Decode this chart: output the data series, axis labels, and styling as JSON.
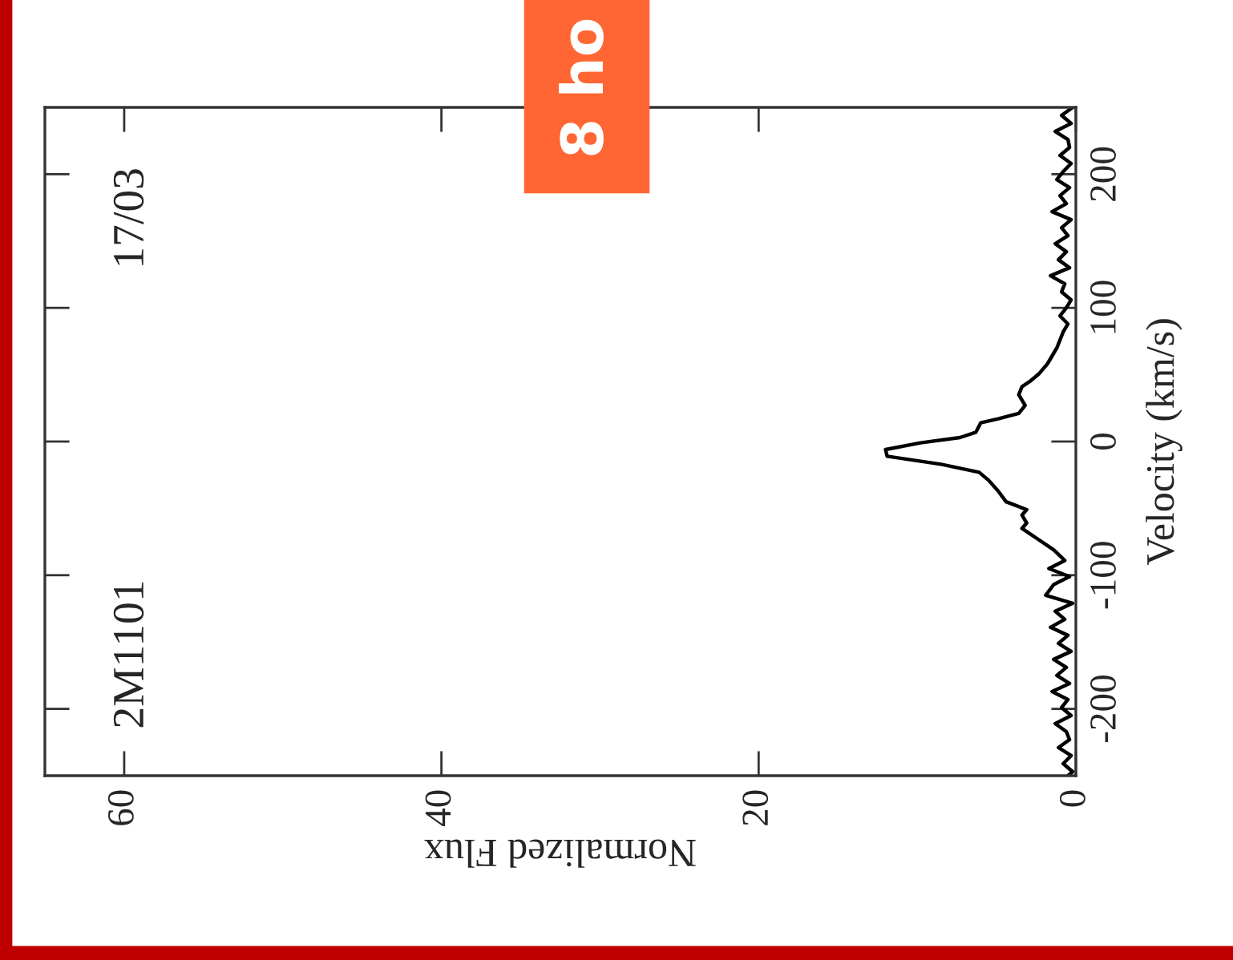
{
  "chart_data": {
    "type": "line",
    "orientation": "horizontal",
    "xlabel": "Normalized Flux",
    "ylabel": "Velocity (km/s)",
    "annotations": [
      "2M1101",
      "17/03",
      "8 ho"
    ],
    "x": [
      250,
      244,
      238,
      232,
      226,
      220,
      214,
      208,
      202,
      196,
      190,
      184,
      178,
      172,
      166,
      160,
      154,
      148,
      142,
      136,
      130,
      124,
      118,
      112,
      106,
      100,
      94,
      88,
      82,
      76,
      70,
      64,
      58,
      51,
      45,
      41,
      35,
      27,
      21,
      17,
      14,
      7,
      3,
      -1,
      -6,
      -11,
      -17,
      -23,
      -29,
      -37,
      -45,
      -51,
      -55,
      -61,
      -65,
      -73,
      -81,
      -89,
      -95,
      -101,
      -107,
      -115,
      -121,
      -127,
      -133,
      -139,
      -145,
      -151,
      -157,
      -163,
      -169,
      -175,
      -181,
      -187,
      -193,
      -199,
      -205,
      -211,
      -217,
      -223,
      -229,
      -235,
      -241,
      -247,
      -250
    ],
    "series": [
      {
        "color": "#000000",
        "values": [
          0.2,
          0.9,
          0.3,
          1.3,
          0.5,
          0.4,
          1.0,
          0.3,
          0.8,
          1.2,
          0.4,
          1.0,
          0.6,
          1.5,
          0.3,
          0.9,
          0.5,
          1.3,
          0.6,
          1.1,
          0.4,
          1.6,
          0.7,
          0.9,
          0.3,
          0.6,
          1.0,
          0.5,
          0.8,
          1.0,
          1.2,
          1.5,
          1.8,
          2.3,
          2.9,
          3.4,
          3.6,
          3.2,
          3.6,
          4.9,
          6.0,
          6.3,
          7.3,
          9.8,
          12.0,
          11.9,
          8.5,
          6.1,
          5.5,
          4.9,
          4.4,
          3.1,
          3.4,
          3.1,
          3.4,
          2.4,
          1.4,
          0.7,
          1.7,
          0.4,
          1.4,
          1.9,
          0.2,
          1.3,
          0.7,
          1.6,
          0.5,
          1.1,
          0.3,
          1.4,
          0.6,
          1.2,
          0.4,
          1.5,
          0.5,
          0.9,
          0.3,
          1.3,
          0.6,
          0.4,
          1.1,
          0.3,
          0.8,
          0.2,
          0.5
        ]
      }
    ],
    "xlim": [
      65,
      0
    ],
    "ylim": [
      -250,
      250
    ],
    "xticks": [
      60,
      40,
      20,
      0
    ],
    "yticks": [
      -200,
      -100,
      0,
      100,
      200
    ],
    "grid": false,
    "legend": false,
    "marker": "none",
    "line_style": "solid"
  }
}
